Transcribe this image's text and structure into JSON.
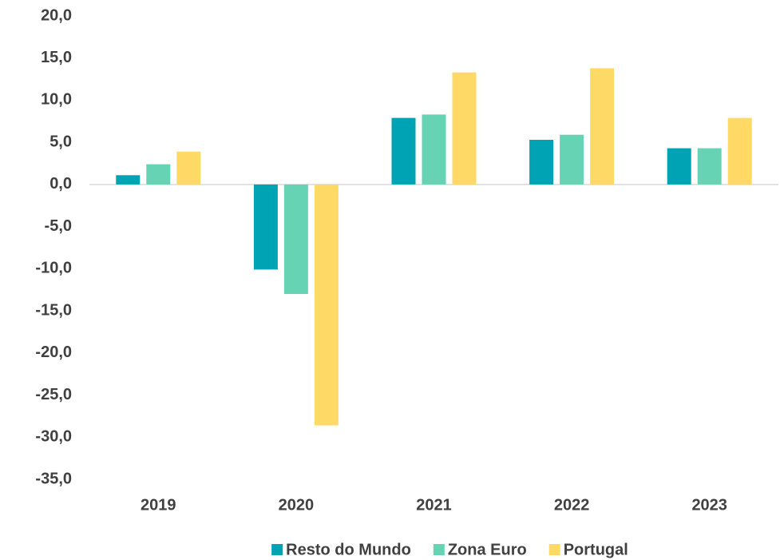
{
  "chart_data": {
    "type": "bar",
    "categories": [
      "2019",
      "2020",
      "2021",
      "2022",
      "2023"
    ],
    "series": [
      {
        "name": "Resto do Mundo",
        "color": "#00a3b4",
        "values": [
          1.1,
          -10.1,
          7.9,
          5.3,
          4.3
        ]
      },
      {
        "name": "Zona Euro",
        "color": "#66d4b4",
        "values": [
          2.4,
          -13.0,
          8.3,
          5.9,
          4.3
        ]
      },
      {
        "name": "Portugal",
        "color": "#ffd966",
        "values": [
          3.9,
          -28.6,
          13.3,
          13.8,
          7.9
        ]
      }
    ],
    "ylim": [
      -35,
      20
    ],
    "yticks": [
      {
        "value": -35,
        "label": "-35,0"
      },
      {
        "value": -30,
        "label": "-30,0"
      },
      {
        "value": -25,
        "label": "-25,0"
      },
      {
        "value": -20,
        "label": "-20,0"
      },
      {
        "value": -15,
        "label": "-15,0"
      },
      {
        "value": -10,
        "label": "-10,0"
      },
      {
        "value": -5,
        "label": "-5,0"
      },
      {
        "value": 0,
        "label": "0,0"
      },
      {
        "value": 5,
        "label": "5,0"
      },
      {
        "value": 10,
        "label": "10,0"
      },
      {
        "value": 15,
        "label": "15,0"
      },
      {
        "value": 20,
        "label": "20,0"
      }
    ],
    "grid": false,
    "legend": "bottom"
  }
}
